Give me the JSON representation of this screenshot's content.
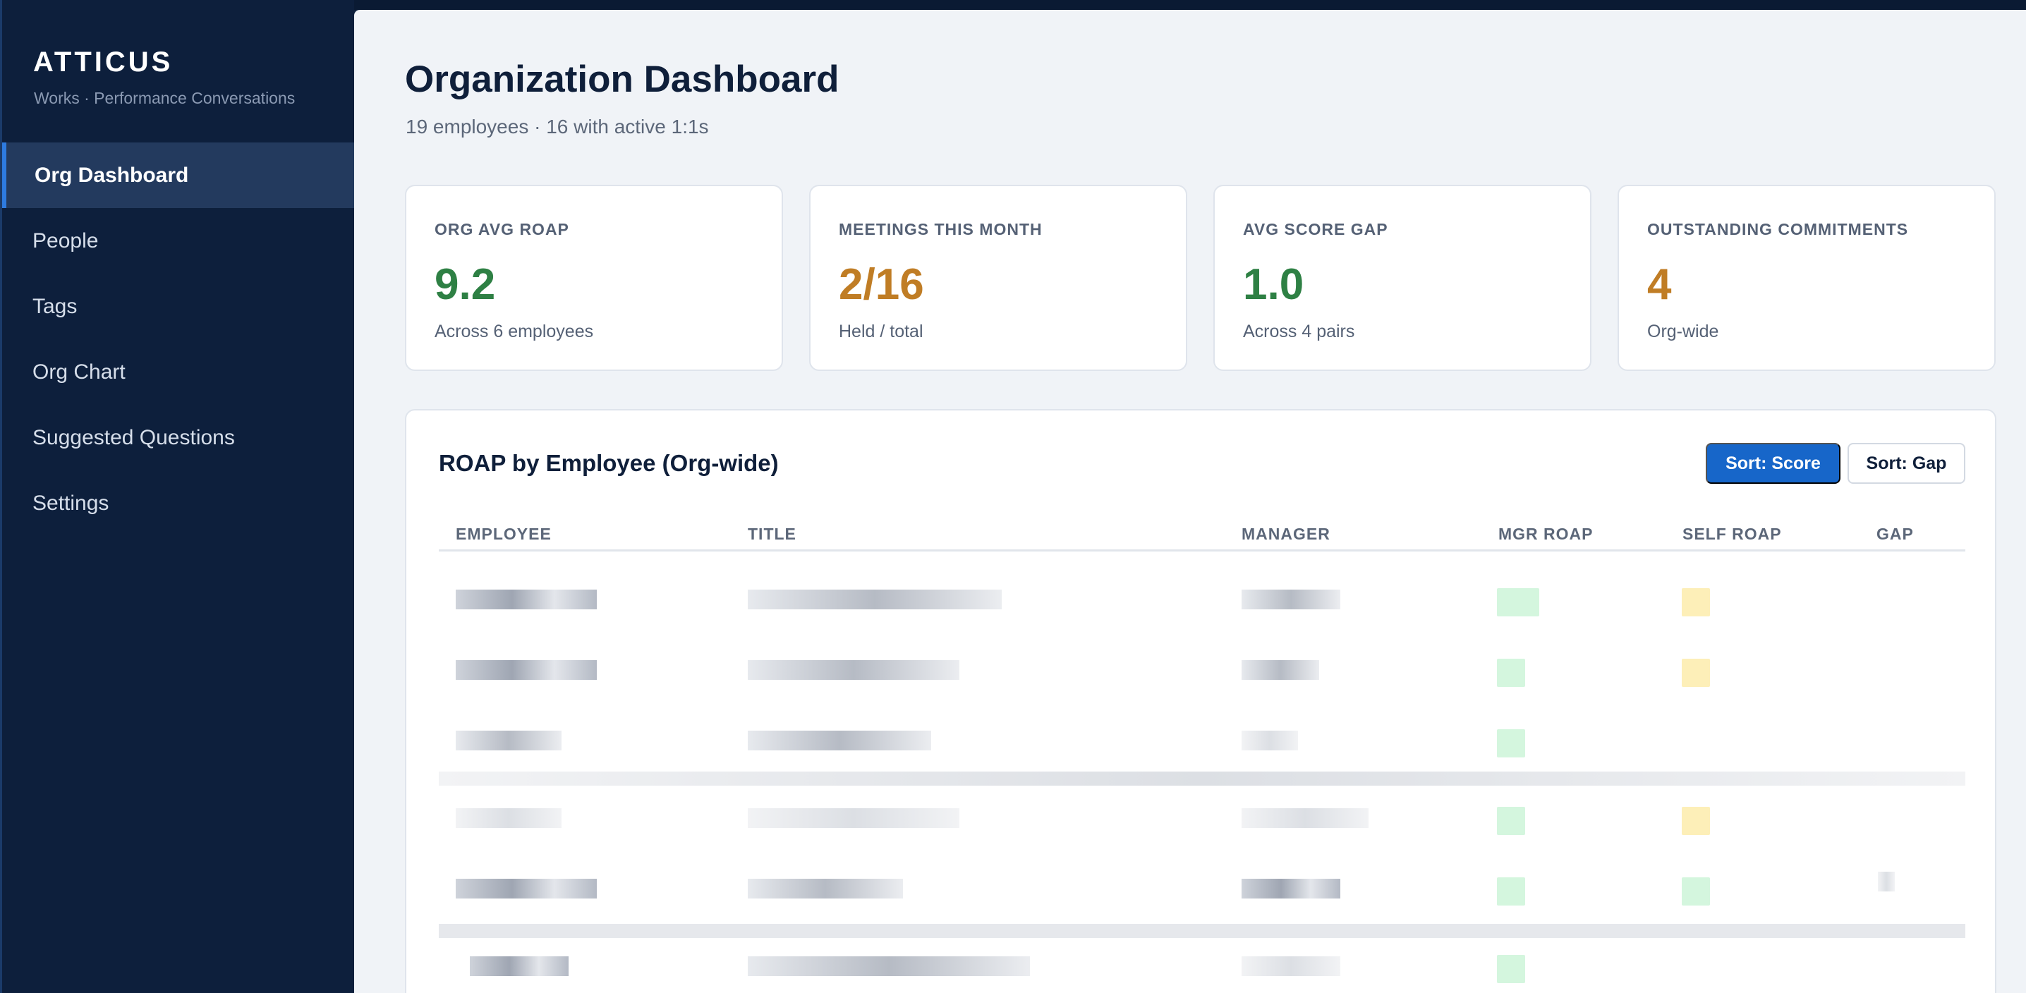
{
  "app": {
    "brand": "ATTICUS",
    "brand_sub": "Works · Performance Conversations"
  },
  "sidebar": {
    "items": [
      {
        "label": "Org Dashboard",
        "active": true
      },
      {
        "label": "People",
        "active": false
      },
      {
        "label": "Tags",
        "active": false
      },
      {
        "label": "Org Chart",
        "active": false
      },
      {
        "label": "Suggested Questions",
        "active": false
      },
      {
        "label": "Settings",
        "active": false
      }
    ]
  },
  "page": {
    "title": "Organization Dashboard",
    "subtitle": "19 employees · 16 with active 1:1s"
  },
  "kpis": [
    {
      "label": "ORG AVG ROAP",
      "value": "9.2",
      "note": "Across 6 employees",
      "color": "#2e8044"
    },
    {
      "label": "MEETINGS THIS MONTH",
      "value": "2/16",
      "note": "Held / total",
      "color": "#c07d25"
    },
    {
      "label": "AVG SCORE GAP",
      "value": "1.0",
      "note": "Across 4 pairs",
      "color": "#2e8044"
    },
    {
      "label": "OUTSTANDING COMMITMENTS",
      "value": "4",
      "note": "Org-wide",
      "color": "#c07d25"
    }
  ],
  "panel": {
    "title": "ROAP by Employee (Org-wide)",
    "sort_score_label": "Sort: Score",
    "sort_gap_label": "Sort: Gap"
  },
  "table": {
    "headers": [
      "EMPLOYEE",
      "TITLE",
      "MANAGER",
      "MGR ROAP",
      "SELF ROAP",
      "GAP"
    ]
  },
  "colors": {
    "accent": "#1766c9",
    "sidebar_bg": "#0d1f3c",
    "positive": "#2e8044",
    "warning": "#c07d25"
  }
}
